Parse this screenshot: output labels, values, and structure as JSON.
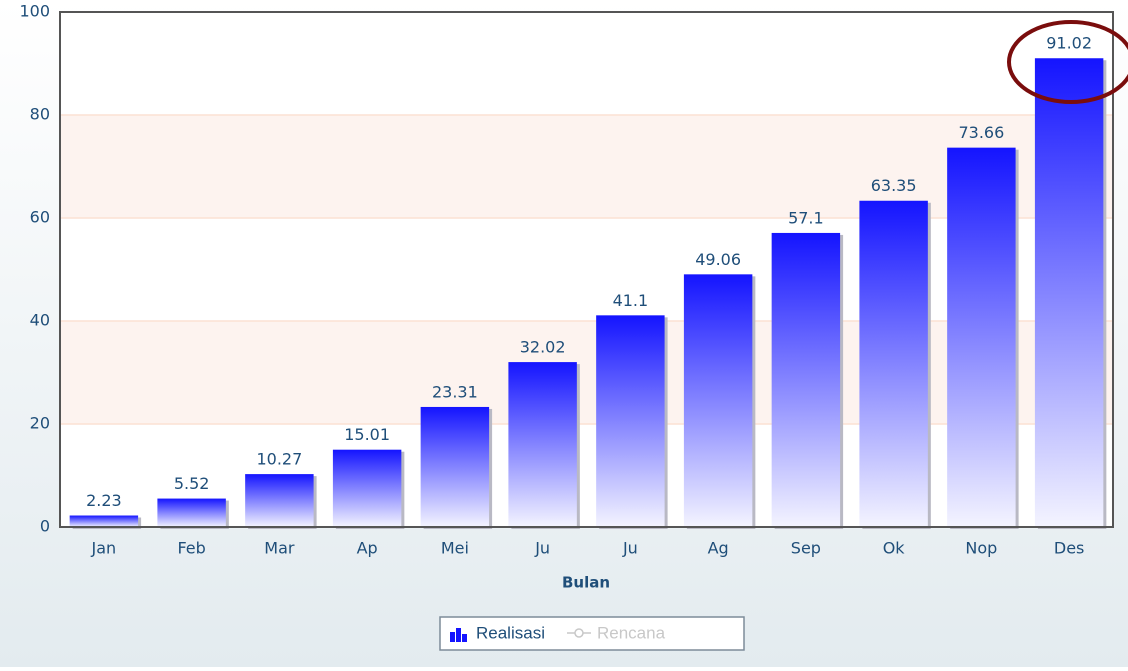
{
  "chart_data": {
    "type": "bar",
    "categories": [
      "Jan",
      "Feb",
      "Mar",
      "Ap",
      "Mei",
      "Ju",
      "Ju",
      "Ag",
      "Sep",
      "Ok",
      "Nop",
      "Des"
    ],
    "series": [
      {
        "name": "Realisasi",
        "color": "#1414ff",
        "values": [
          2.23,
          5.52,
          10.27,
          15.01,
          23.31,
          32.02,
          41.1,
          49.06,
          57.1,
          63.35,
          73.66,
          91.02
        ]
      },
      {
        "name": "Rencana",
        "color": "#c8c8c8",
        "visible": false,
        "values": [
          null,
          null,
          null,
          null,
          null,
          null,
          null,
          null,
          null,
          null,
          null,
          null
        ]
      }
    ],
    "xlabel": "Bulan",
    "ylim": [
      0,
      100
    ],
    "yticks": [
      0,
      20,
      40,
      60,
      80,
      100
    ],
    "grid": true,
    "alternate_bands": true
  }
}
